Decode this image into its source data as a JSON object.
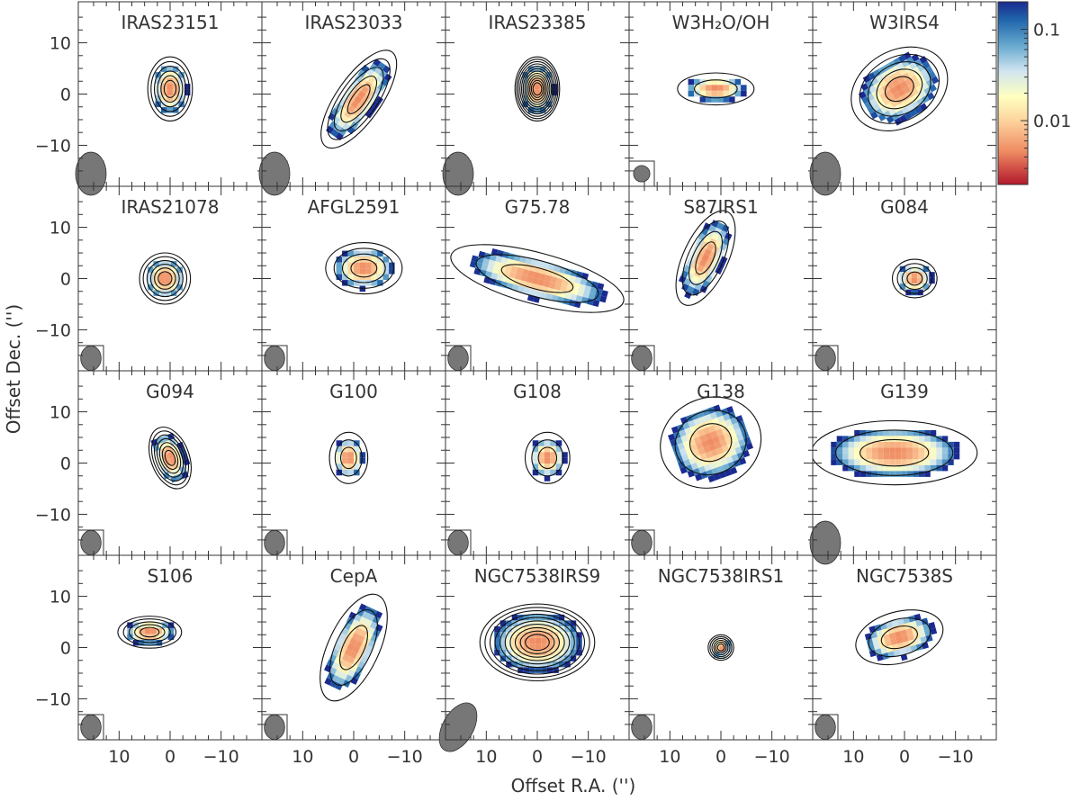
{
  "chart_data": {
    "type": "heatmap",
    "xlabel": "Offset R.A. ('')",
    "ylabel": "Offset Dec. ('')",
    "xlim": [
      18,
      -18
    ],
    "ylim": [
      -18,
      18
    ],
    "xticks": [
      10,
      0,
      -10
    ],
    "yticks": [
      10,
      0,
      -10
    ],
    "xtick_labels": [
      "10",
      "0",
      "−10"
    ],
    "ytick_labels": [
      "10",
      "0",
      "−10"
    ],
    "colorbar": {
      "scale": "log",
      "range": [
        0.002,
        0.2
      ],
      "ticks": [
        0.1,
        0.01
      ],
      "tick_labels": [
        "0.1",
        "0.01"
      ],
      "colors": [
        "#b2182b",
        "#ef8a62",
        "#fdd49e",
        "#ffffbf",
        "#d1e5f0",
        "#67a9cf",
        "#2166ac",
        "#1a2a8f"
      ]
    },
    "panels": [
      {
        "name": "IRAS23151",
        "source": {
          "x": 0,
          "y": 1,
          "sx": 3.5,
          "sy": 5,
          "angle": 0
        },
        "levels": 6,
        "beam": {
          "w": 3.0,
          "h": 4.2,
          "angle": 0
        }
      },
      {
        "name": "IRAS23033",
        "source": {
          "x": -1,
          "y": -1,
          "sx": 3.5,
          "sy": 9,
          "angle": 35
        },
        "levels": 5,
        "beam": {
          "w": 3.0,
          "h": 4.2,
          "angle": 0
        }
      },
      {
        "name": "IRAS23385",
        "source": {
          "x": 0,
          "y": 1,
          "sx": 3.5,
          "sy": 5,
          "angle": 0
        },
        "levels": 12,
        "beam": {
          "w": 3.0,
          "h": 4.2,
          "angle": 0
        }
      },
      {
        "name": "W3H₂O/OH",
        "source": {
          "x": 1,
          "y": 1,
          "sx": 6,
          "sy": 2.5,
          "angle": 0
        },
        "levels": 2,
        "beam": {
          "w": 1.6,
          "h": 1.6,
          "angle": 0
        }
      },
      {
        "name": "W3IRS4",
        "source": {
          "x": 1,
          "y": 1,
          "sx": 8,
          "sy": 6,
          "angle": -30
        },
        "levels": 5,
        "beam": {
          "w": 3.0,
          "h": 4.2,
          "angle": 0
        }
      },
      {
        "name": "IRAS21078",
        "source": {
          "x": 1,
          "y": 0,
          "sx": 4,
          "sy": 4,
          "angle": 0
        },
        "levels": 6,
        "beam": {
          "w": 2.0,
          "h": 2.4,
          "angle": 0
        }
      },
      {
        "name": "AFGL2591",
        "source": {
          "x": -2,
          "y": 2,
          "sx": 6,
          "sy": 4,
          "angle": 0
        },
        "levels": 4,
        "beam": {
          "w": 2.0,
          "h": 2.4,
          "angle": 0
        }
      },
      {
        "name": "G75.78",
        "source": {
          "x": 0,
          "y": 0,
          "sx": 14,
          "sy": 4,
          "angle": 15
        },
        "levels": 3,
        "beam": {
          "w": 2.0,
          "h": 2.4,
          "angle": 0
        }
      },
      {
        "name": "S87IRS1",
        "source": {
          "x": 3,
          "y": 4,
          "sx": 3.5,
          "sy": 8,
          "angle": 25
        },
        "levels": 4,
        "beam": {
          "w": 2.0,
          "h": 2.4,
          "angle": 0
        }
      },
      {
        "name": "G084",
        "source": {
          "x": -2,
          "y": 0,
          "sx": 3.5,
          "sy": 3,
          "angle": 0
        },
        "levels": 4,
        "beam": {
          "w": 2.0,
          "h": 2.4,
          "angle": 0
        }
      },
      {
        "name": "G094",
        "source": {
          "x": 0,
          "y": 1,
          "sx": 3,
          "sy": 5,
          "angle": -20
        },
        "levels": 7,
        "beam": {
          "w": 2.0,
          "h": 2.4,
          "angle": 0
        }
      },
      {
        "name": "G100",
        "source": {
          "x": 1,
          "y": 1,
          "sx": 3,
          "sy": 4,
          "angle": 0
        },
        "levels": 3,
        "beam": {
          "w": 2.0,
          "h": 2.4,
          "angle": 0
        }
      },
      {
        "name": "G108",
        "source": {
          "x": -2,
          "y": 1,
          "sx": 3.5,
          "sy": 4,
          "angle": 0
        },
        "levels": 3,
        "beam": {
          "w": 2.0,
          "h": 2.4,
          "angle": 0
        }
      },
      {
        "name": "G138",
        "source": {
          "x": 2,
          "y": 4,
          "sx": 8,
          "sy": 7,
          "angle": -20
        },
        "levels": 3,
        "beam": {
          "w": 2.0,
          "h": 2.4,
          "angle": 0
        }
      },
      {
        "name": "G139",
        "source": {
          "x": 2,
          "y": 2,
          "sx": 13,
          "sy": 5,
          "angle": 0
        },
        "levels": 3,
        "beam": {
          "w": 3.0,
          "h": 4.2,
          "angle": 0
        }
      },
      {
        "name": "S106",
        "source": {
          "x": 4,
          "y": 3,
          "sx": 5,
          "sy": 2.5,
          "angle": 0
        },
        "levels": 5,
        "beam": {
          "w": 2.0,
          "h": 2.4,
          "angle": 0
        }
      },
      {
        "name": "CepA",
        "source": {
          "x": 0,
          "y": 0,
          "sx": 4,
          "sy": 9,
          "angle": 25
        },
        "levels": 3,
        "beam": {
          "w": 2.0,
          "h": 2.4,
          "angle": 0
        }
      },
      {
        "name": "NGC7538IRS9",
        "source": {
          "x": 0,
          "y": 1,
          "sx": 9,
          "sy": 6,
          "angle": 0
        },
        "levels": 10,
        "beam": {
          "w": 3.0,
          "h": 5.2,
          "angle": 30
        }
      },
      {
        "name": "NGC7538IRS1",
        "source": {
          "x": 0,
          "y": 0,
          "sx": 2,
          "sy": 2,
          "angle": 0
        },
        "levels": 6,
        "beam": {
          "w": 2.0,
          "h": 2.4,
          "angle": 0
        }
      },
      {
        "name": "NGC7538S",
        "source": {
          "x": 1,
          "y": 2,
          "sx": 7,
          "sy": 4,
          "angle": -15
        },
        "levels": 3,
        "beam": {
          "w": 2.0,
          "h": 2.4,
          "angle": 0
        }
      }
    ]
  }
}
